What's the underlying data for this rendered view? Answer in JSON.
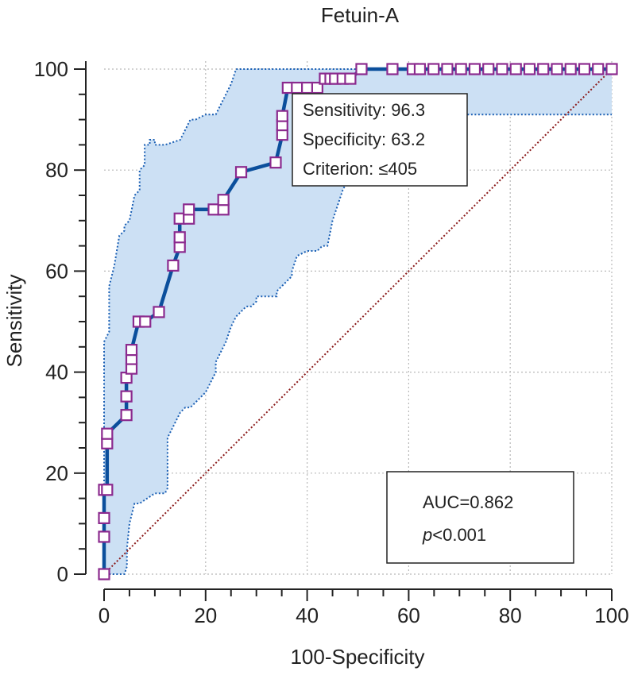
{
  "chart_data": {
    "type": "line",
    "title": "Fetuin-A",
    "xlabel": "100-Specificity",
    "ylabel": "Sensitivity",
    "xlim": [
      0,
      100
    ],
    "ylim": [
      0,
      100
    ],
    "xticks": [
      0,
      20,
      40,
      60,
      80,
      100
    ],
    "yticks": [
      0,
      20,
      40,
      60,
      80,
      100
    ],
    "grid": true,
    "colors": {
      "roc_line": "#0b4f9c",
      "marker": "#8b2a8e",
      "ci_fill": "#cce0f4",
      "ci_border": "#1a5fb4",
      "reference": "#8b1a1a",
      "grid": "#b8b8b8"
    },
    "series": [
      {
        "name": "ROC curve",
        "x": [
          0,
          0,
          0,
          0,
          0.6,
          0.6,
          0.6,
          4.4,
          4.4,
          4.4,
          5.4,
          5.4,
          5.4,
          6.8,
          8.1,
          10.8,
          13.6,
          14.9,
          14.9,
          14.9,
          16.7,
          16.7,
          21.6,
          23.5,
          23.5,
          27,
          33.8,
          35.1,
          35.1,
          35.1,
          36.2,
          38,
          40,
          42,
          43.5,
          44.6,
          45.5,
          47,
          48.5,
          50.7,
          56.8,
          60.8,
          62.2,
          64.9,
          67.6,
          70.3,
          73,
          75.7,
          78.4,
          81.1,
          83.8,
          86.5,
          89.2,
          91.9,
          94.6,
          97.3,
          100
        ],
        "y": [
          0,
          7.4,
          11.1,
          16.7,
          16.7,
          25.9,
          27.8,
          31.5,
          35.2,
          38.9,
          40.7,
          42.6,
          44.4,
          50,
          50,
          51.9,
          61.1,
          64.8,
          66.7,
          70.4,
          70.4,
          72.2,
          72.2,
          72.2,
          74.1,
          79.6,
          81.5,
          87,
          88.9,
          90.7,
          96.3,
          96.3,
          96.3,
          96.3,
          98.1,
          98.1,
          98.1,
          98.1,
          98.1,
          100,
          100,
          100,
          100,
          100,
          100,
          100,
          100,
          100,
          100,
          100,
          100,
          100,
          100,
          100,
          100,
          100,
          100
        ]
      },
      {
        "name": "95% CI upper",
        "x": [
          0,
          0,
          1,
          1,
          2,
          3,
          4,
          4,
          5,
          6,
          7,
          7,
          8,
          8,
          9,
          9,
          10,
          10,
          12,
          12,
          15,
          17,
          18,
          20,
          22,
          23,
          24,
          25,
          26,
          40,
          42,
          44,
          100
        ],
        "y": [
          0,
          46,
          48,
          57,
          61,
          67,
          68,
          69,
          70,
          75,
          76,
          80,
          81,
          85,
          85,
          86,
          86,
          85,
          85,
          85,
          86,
          90,
          90,
          91,
          91,
          93,
          95,
          97,
          100,
          100,
          100,
          100,
          100
        ]
      },
      {
        "name": "95% CI lower",
        "x": [
          1,
          4,
          4.5,
          4.5,
          5,
          6,
          7,
          10,
          11,
          12,
          12.5,
          12.5,
          13,
          14,
          15,
          16,
          17,
          18,
          19,
          20,
          21,
          22,
          22,
          23,
          24,
          25,
          25.5,
          26,
          27,
          28,
          29,
          30,
          30,
          34,
          34,
          35,
          36,
          37,
          37,
          38,
          40,
          42,
          43,
          44,
          45,
          46,
          47,
          48,
          48,
          49,
          100
        ],
        "y": [
          0,
          0,
          1.5,
          5,
          10,
          14,
          14,
          16,
          16,
          16,
          17,
          27,
          28,
          30,
          32,
          33,
          33,
          34,
          35,
          36,
          38,
          40,
          42,
          44,
          46,
          49,
          50,
          51,
          52,
          53,
          53,
          54,
          55,
          55,
          56,
          57,
          58,
          59,
          60,
          63,
          64,
          64,
          65,
          65,
          70,
          73,
          76,
          78,
          81,
          91,
          91
        ]
      }
    ],
    "reference_line": {
      "x": [
        0,
        100
      ],
      "y": [
        0,
        100
      ]
    },
    "annotations": {
      "criterion_box": [
        "Sensitivity: 96.3",
        "Specificity: 63.2",
        "Criterion: ≤405"
      ],
      "auc_label": "AUC=0.862",
      "p_symbol": "p",
      "p_value": "<0.001"
    }
  }
}
